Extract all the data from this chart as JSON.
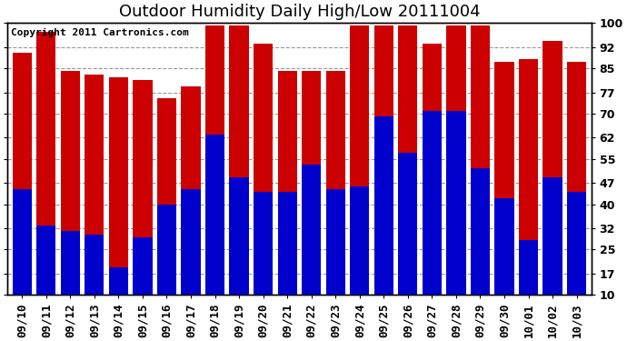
{
  "title": "Outdoor Humidity Daily High/Low 20111004",
  "copyright_text": "Copyright 2011 Cartronics.com",
  "dates": [
    "09/10",
    "09/11",
    "09/12",
    "09/13",
    "09/14",
    "09/15",
    "09/16",
    "09/17",
    "09/18",
    "09/19",
    "09/20",
    "09/21",
    "09/22",
    "09/23",
    "09/24",
    "09/25",
    "09/26",
    "09/27",
    "09/28",
    "09/29",
    "09/30",
    "10/01",
    "10/02",
    "10/03"
  ],
  "highs": [
    90,
    97,
    84,
    83,
    82,
    81,
    75,
    79,
    99,
    99,
    93,
    84,
    84,
    84,
    99,
    99,
    99,
    93,
    99,
    99,
    87,
    88,
    94,
    87
  ],
  "lows": [
    45,
    33,
    31,
    30,
    19,
    29,
    40,
    45,
    63,
    49,
    44,
    44,
    53,
    45,
    46,
    69,
    57,
    71,
    71,
    52,
    42,
    28,
    49,
    44
  ],
  "high_color": "#cc0000",
  "low_color": "#0000cc",
  "bg_color": "#ffffff",
  "plot_bg_color": "#ffffff",
  "grid_color": "#999999",
  "bar_width": 0.8,
  "ylim": [
    10,
    100
  ],
  "yticks": [
    10,
    17,
    25,
    32,
    40,
    47,
    55,
    62,
    70,
    77,
    85,
    92,
    100
  ],
  "title_fontsize": 13,
  "tick_fontsize": 9,
  "copyright_fontsize": 8,
  "figsize": [
    6.9,
    3.75
  ],
  "dpi": 100
}
